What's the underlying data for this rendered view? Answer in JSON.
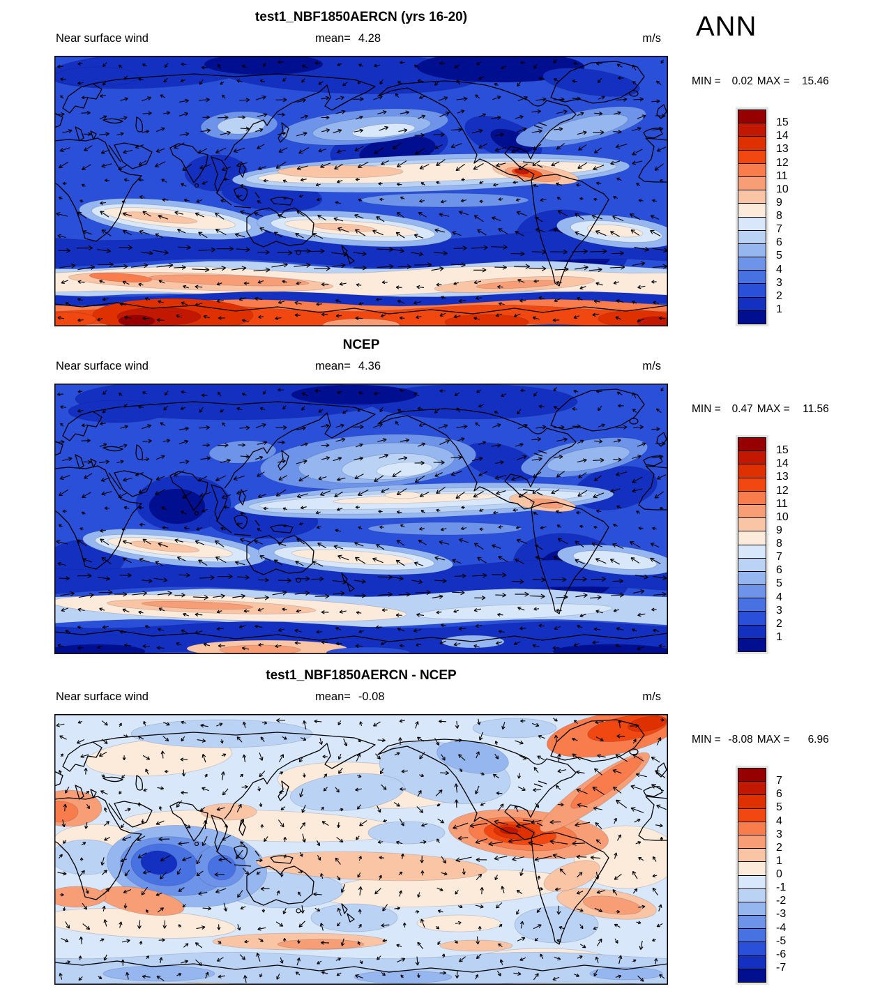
{
  "season_label": "ANN",
  "palette_top_to_bottom": [
    "#960000",
    "#C21700",
    "#DF3000",
    "#F04810",
    "#F87C4C",
    "#F79E76",
    "#FAC5A5",
    "#FCEADA",
    "#D8E8FA",
    "#BAD2F4",
    "#95B6EE",
    "#6D94E8",
    "#4871E2",
    "#2A4FD8",
    "#1430C0",
    "#000E90"
  ],
  "panels": [
    {
      "title": "test1_NBF1850AERCN (yrs 16-20)",
      "field_label": "Near surface wind",
      "mean_label": "mean=",
      "mean_value": "4.28",
      "units": "m/s",
      "min_label": "MIN =",
      "min_value": "0.02",
      "max_label": "MAX =",
      "max_value": "15.46",
      "colorbar_ticks": [
        "15",
        "14",
        "13",
        "12",
        "11",
        "10",
        "9",
        "8",
        "7",
        "6",
        "5",
        "4",
        "3",
        "2",
        "1"
      ]
    },
    {
      "title": "NCEP",
      "field_label": "Near surface wind",
      "mean_label": "mean=",
      "mean_value": "4.36",
      "units": "m/s",
      "min_label": "MIN =",
      "min_value": "0.47",
      "max_label": "MAX =",
      "max_value": "11.56",
      "colorbar_ticks": [
        "15",
        "14",
        "13",
        "12",
        "11",
        "10",
        "9",
        "8",
        "7",
        "6",
        "5",
        "4",
        "3",
        "2",
        "1"
      ]
    },
    {
      "title": "test1_NBF1850AERCN - NCEP",
      "field_label": "Near surface wind",
      "mean_label": "mean=",
      "mean_value": "-0.08",
      "units": "m/s",
      "min_label": "MIN =",
      "min_value": "-8.08",
      "max_label": "MAX =",
      "max_value": "6.96",
      "colorbar_ticks": [
        "7",
        "6",
        "5",
        "4",
        "3",
        "2",
        "1",
        "0",
        "-1",
        "-2",
        "-3",
        "-4",
        "-5",
        "-6",
        "-7"
      ]
    }
  ],
  "chart_data": [
    {
      "type": "heatmap",
      "subtype": "filled-contour global map with wind vector overlay",
      "title": "test1_NBF1850AERCN (yrs 16-20)",
      "variable": "Near surface wind",
      "season": "ANN",
      "units": "m/s",
      "mean": 4.28,
      "min": 0.02,
      "max": 15.46,
      "contour_levels": [
        1,
        2,
        3,
        4,
        5,
        6,
        7,
        8,
        9,
        10,
        11,
        12,
        13,
        14,
        15
      ],
      "palette_low_to_high": [
        "#000E90",
        "#1430C0",
        "#2A4FD8",
        "#4871E2",
        "#6D94E8",
        "#95B6EE",
        "#BAD2F4",
        "#D8E8FA",
        "#FCEADA",
        "#FAC5A5",
        "#F79E76",
        "#F87C4C",
        "#F04810",
        "#DF3000",
        "#C21700",
        "#960000"
      ],
      "legend_position": "right",
      "projection": "global cylindrical (0-360E, 90N-90S)",
      "notable_features": "strong westerly wind maxima (orange/red, 9-15 m/s) over the Southern Ocean and along the Antarctic margin; peach trade-wind bands (~8-10 m/s) in both tropics; Caribbean easterly jet maximum; weak winds (dark blue, <3 m/s) over continents and equatorial west Pacific"
    },
    {
      "type": "heatmap",
      "subtype": "filled-contour global map with wind vector overlay",
      "title": "NCEP",
      "variable": "Near surface wind",
      "season": "ANN",
      "units": "m/s",
      "mean": 4.36,
      "min": 0.47,
      "max": 11.56,
      "contour_levels": [
        1,
        2,
        3,
        4,
        5,
        6,
        7,
        8,
        9,
        10,
        11,
        12,
        13,
        14,
        15
      ],
      "palette_low_to_high": [
        "#000E90",
        "#1430C0",
        "#2A4FD8",
        "#4871E2",
        "#6D94E8",
        "#95B6EE",
        "#BAD2F4",
        "#D8E8FA",
        "#FCEADA",
        "#FAC5A5",
        "#F79E76",
        "#F87C4C",
        "#F04810",
        "#DF3000",
        "#C21700",
        "#960000"
      ],
      "legend_position": "right",
      "projection": "global cylindrical (0-360E, 90N-90S)",
      "notable_features": "reanalysis winds: peach Southern Ocean westerly band strongest in Indian-ocean sector; moderate trade-wind bands; lighter-blue North Pacific westerlies; blue Antarctic margin"
    },
    {
      "type": "heatmap",
      "subtype": "difference map (model minus reanalysis) with wind vector overlay",
      "title": "test1_NBF1850AERCN - NCEP",
      "variable": "Near surface wind",
      "season": "ANN",
      "units": "m/s",
      "mean": -0.08,
      "min": -8.08,
      "max": 6.96,
      "contour_levels": [
        -7,
        -6,
        -5,
        -4,
        -3,
        -2,
        -1,
        0,
        1,
        2,
        3,
        4,
        5,
        6,
        7
      ],
      "palette_low_to_high": [
        "#000E90",
        "#1430C0",
        "#2A4FD8",
        "#4871E2",
        "#6D94E8",
        "#95B6EE",
        "#BAD2F4",
        "#D8E8FA",
        "#FCEADA",
        "#FAC5A5",
        "#F79E76",
        "#F87C4C",
        "#F04810",
        "#DF3000",
        "#C21700",
        "#960000"
      ],
      "legend_position": "right",
      "projection": "global cylindrical (0-360E, 90N-90S)",
      "notable_features": "large positive bias (red, up to ~7 m/s) over Caribbean/tropical Atlantic and northeast of South America; strong negative bias (dark blue, to ~-8 m/s) over Arabian Sea / Bay of Bengal; mottled weak biases (±1-2 m/s) elsewhere"
    }
  ]
}
